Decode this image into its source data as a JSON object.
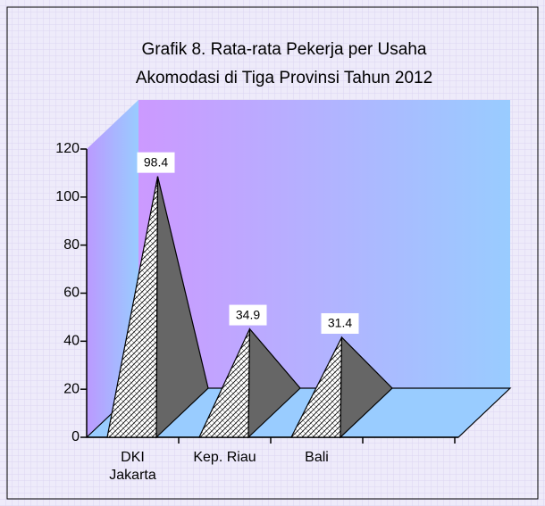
{
  "chart_data": {
    "type": "pyramid3d",
    "title": [
      "Grafik 8. Rata-rata Pekerja per Usaha",
      "Akomodasi di Tiga Provinsi Tahun 2012"
    ],
    "categories": [
      "DKI Jakarta",
      "Kep. Riau",
      "Bali"
    ],
    "values": [
      98.4,
      34.9,
      31.4
    ],
    "ylim": [
      0,
      120
    ],
    "yticks": [
      0,
      20,
      40,
      60,
      80,
      100,
      120
    ]
  }
}
